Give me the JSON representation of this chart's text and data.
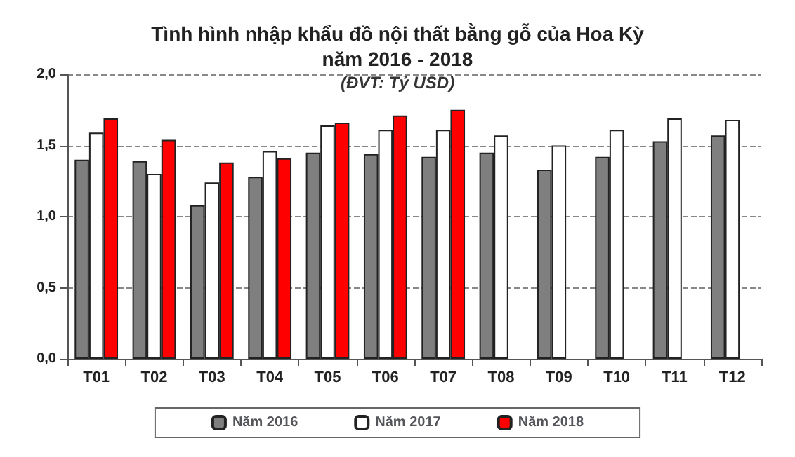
{
  "chart_data": {
    "type": "bar",
    "title": "Tình hình nhập khẩu đồ nội thất bằng gỗ của Hoa Kỳ\nnăm 2016 - 2018",
    "subtitle": "(ĐVT: Tỷ USD)",
    "categories": [
      "T01",
      "T02",
      "T03",
      "T04",
      "T05",
      "T06",
      "T07",
      "T08",
      "T09",
      "T10",
      "T11",
      "T12"
    ],
    "series": [
      {
        "name": "Năm 2016",
        "color": "#7f7f7f",
        "values": [
          1.4,
          1.39,
          1.08,
          1.28,
          1.45,
          1.44,
          1.42,
          1.45,
          1.33,
          1.42,
          1.53,
          1.57
        ]
      },
      {
        "name": "Năm 2017",
        "color": "#ffffff",
        "values": [
          1.59,
          1.3,
          1.24,
          1.46,
          1.64,
          1.61,
          1.61,
          1.57,
          1.5,
          1.61,
          1.69,
          1.68
        ]
      },
      {
        "name": "Năm 2018",
        "color": "#ff0000",
        "values": [
          1.69,
          1.54,
          1.38,
          1.41,
          1.66,
          1.71,
          1.75,
          null,
          null,
          null,
          null,
          null
        ]
      }
    ],
    "ylim": [
      0,
      2
    ],
    "yticks": [
      {
        "value": 0,
        "label": "0,0"
      },
      {
        "value": 0.5,
        "label": "0,5"
      },
      {
        "value": 1,
        "label": "1,0"
      },
      {
        "value": 1.5,
        "label": "1,5"
      },
      {
        "value": 2,
        "label": "2,0"
      }
    ],
    "grid": "y",
    "legend": "bottom"
  }
}
